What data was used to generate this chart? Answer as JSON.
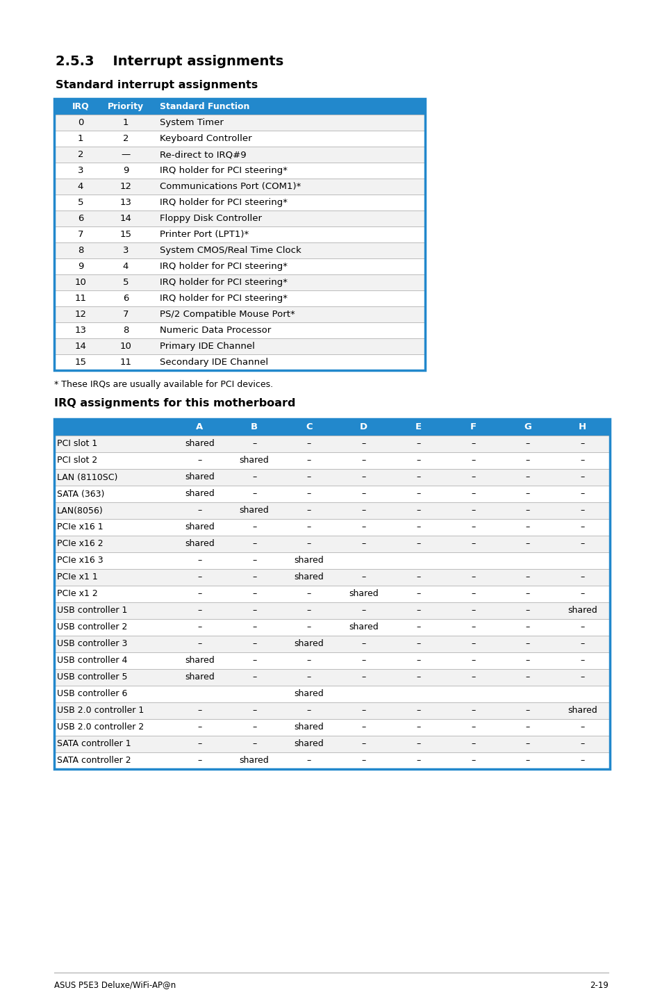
{
  "title_section": "2.5.3    Interrupt assignments",
  "subtitle1": "Standard interrupt assignments",
  "subtitle2": "IRQ assignments for this motherboard",
  "footnote": "* These IRQs are usually available for PCI devices.",
  "footer_left": "ASUS P5E3 Deluxe/WiFi-AP@n",
  "footer_right": "2-19",
  "header_bg": "#2288cc",
  "border_color": "#2288cc",
  "table1_headers": [
    "IRQ",
    "Priority",
    "Standard Function"
  ],
  "table1_rows": [
    [
      "0",
      "1",
      "System Timer"
    ],
    [
      "1",
      "2",
      "Keyboard Controller"
    ],
    [
      "2",
      "—",
      "Re-direct to IRQ#9"
    ],
    [
      "3",
      "9",
      "IRQ holder for PCI steering*"
    ],
    [
      "4",
      "12",
      "Communications Port (COM1)*"
    ],
    [
      "5",
      "13",
      "IRQ holder for PCI steering*"
    ],
    [
      "6",
      "14",
      "Floppy Disk Controller"
    ],
    [
      "7",
      "15",
      "Printer Port (LPT1)*"
    ],
    [
      "8",
      "3",
      "System CMOS/Real Time Clock"
    ],
    [
      "9",
      "4",
      "IRQ holder for PCI steering*"
    ],
    [
      "10",
      "5",
      "IRQ holder for PCI steering*"
    ],
    [
      "11",
      "6",
      "IRQ holder for PCI steering*"
    ],
    [
      "12",
      "7",
      "PS/2 Compatible Mouse Port*"
    ],
    [
      "13",
      "8",
      "Numeric Data Processor"
    ],
    [
      "14",
      "10",
      "Primary IDE Channel"
    ],
    [
      "15",
      "11",
      "Secondary IDE Channel"
    ]
  ],
  "table2_headers": [
    "",
    "A",
    "B",
    "C",
    "D",
    "E",
    "F",
    "G",
    "H"
  ],
  "table2_rows": [
    [
      "PCI slot 1",
      "shared",
      "–",
      "–",
      "–",
      "–",
      "–",
      "–",
      "–"
    ],
    [
      "PCI slot 2",
      "–",
      "shared",
      "–",
      "–",
      "–",
      "–",
      "–",
      "–"
    ],
    [
      "LAN (8110SC)",
      "shared",
      "–",
      "–",
      "–",
      "–",
      "–",
      "–",
      "–"
    ],
    [
      "SATA (363)",
      "shared",
      "–",
      "–",
      "–",
      "–",
      "–",
      "–",
      "–"
    ],
    [
      "LAN(8056)",
      "–",
      "shared",
      "–",
      "–",
      "–",
      "–",
      "–",
      "–"
    ],
    [
      "PCIe x16 1",
      "shared",
      "–",
      "–",
      "–",
      "–",
      "–",
      "–",
      "–"
    ],
    [
      "PCIe x16 2",
      "shared",
      "–",
      "–",
      "–",
      "–",
      "–",
      "–",
      "–"
    ],
    [
      "PCIe x16 3",
      "–",
      "–",
      "shared",
      "",
      "",
      "",
      "",
      ""
    ],
    [
      "PCIe x1 1",
      "–",
      "–",
      "shared",
      "–",
      "–",
      "–",
      "–",
      "–"
    ],
    [
      "PCIe x1 2",
      "–",
      "–",
      "–",
      "shared",
      "–",
      "–",
      "–",
      "–"
    ],
    [
      "USB controller 1",
      "–",
      "–",
      "–",
      "–",
      "–",
      "–",
      "–",
      "shared"
    ],
    [
      "USB controller 2",
      "–",
      "–",
      "–",
      "shared",
      "–",
      "–",
      "–",
      "–"
    ],
    [
      "USB controller 3",
      "–",
      "–",
      "shared",
      "–",
      "–",
      "–",
      "–",
      "–"
    ],
    [
      "USB controller 4",
      "shared",
      "–",
      "–",
      "–",
      "–",
      "–",
      "–",
      "–"
    ],
    [
      "USB controller 5",
      "shared",
      "–",
      "–",
      "–",
      "–",
      "–",
      "–",
      "–"
    ],
    [
      "USB controller 6",
      "",
      "",
      "shared",
      "",
      "",
      "",
      "",
      ""
    ],
    [
      "USB 2.0 controller 1",
      "–",
      "–",
      "–",
      "–",
      "–",
      "–",
      "–",
      "shared"
    ],
    [
      "USB 2.0 controller 2",
      "–",
      "–",
      "shared",
      "–",
      "–",
      "–",
      "–",
      "–"
    ],
    [
      "SATA controller 1",
      "–",
      "–",
      "shared",
      "–",
      "–",
      "–",
      "–",
      "–"
    ],
    [
      "SATA controller 2",
      "–",
      "shared",
      "–",
      "–",
      "–",
      "–",
      "–",
      "–"
    ]
  ]
}
